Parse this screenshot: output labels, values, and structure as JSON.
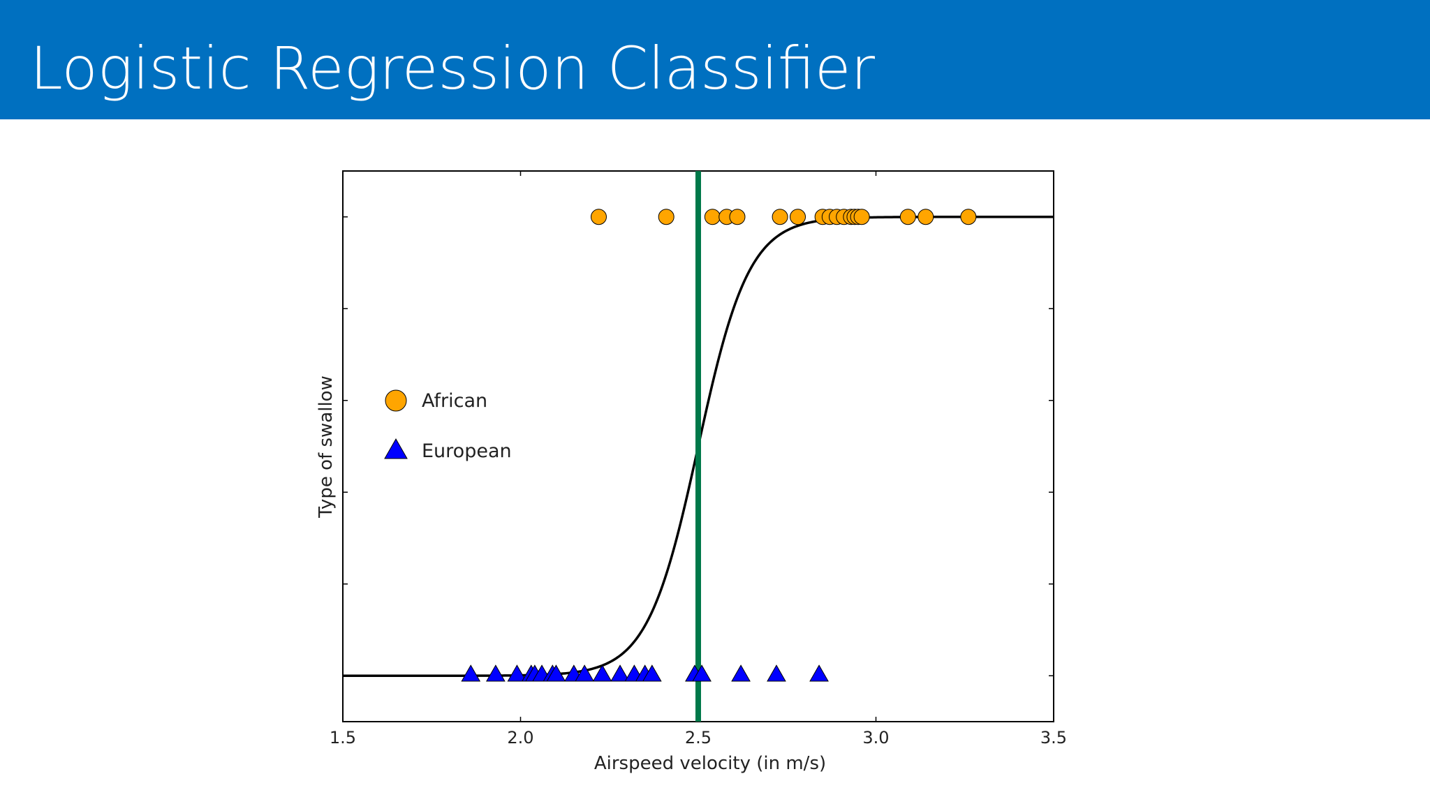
{
  "slide": {
    "title": "Logistic Regression Classifier",
    "header_color": "#0070c0"
  },
  "chart_data": {
    "type": "scatter",
    "title": "",
    "xlabel": "Airspeed velocity (in m/s)",
    "ylabel": "Type of swallow",
    "xlim": [
      1.5,
      3.5
    ],
    "ylim": [
      -0.1,
      1.1
    ],
    "xticks": [
      "1.5",
      "2.0",
      "2.5",
      "3.0",
      "3.5"
    ],
    "y_tick_count": 6,
    "grid": false,
    "legend_position": "left-center",
    "decision_boundary": {
      "x": 2.5,
      "color": "#00794a"
    },
    "curve": {
      "type": "sigmoid",
      "midpoint": 2.5,
      "steepness": 14,
      "color": "#000000"
    },
    "series": [
      {
        "name": "African",
        "marker": "circle",
        "color": "#ffa500",
        "y": 1,
        "x": [
          2.22,
          2.41,
          2.54,
          2.58,
          2.61,
          2.73,
          2.78,
          2.85,
          2.87,
          2.89,
          2.91,
          2.93,
          2.94,
          2.95,
          2.96,
          3.09,
          3.14,
          3.26
        ]
      },
      {
        "name": "European",
        "marker": "triangle",
        "color": "#0000ff",
        "y": 0,
        "x": [
          1.86,
          1.93,
          1.99,
          2.03,
          2.04,
          2.06,
          2.09,
          2.1,
          2.15,
          2.18,
          2.23,
          2.28,
          2.32,
          2.35,
          2.37,
          2.49,
          2.51,
          2.62,
          2.72,
          2.84
        ]
      }
    ]
  }
}
